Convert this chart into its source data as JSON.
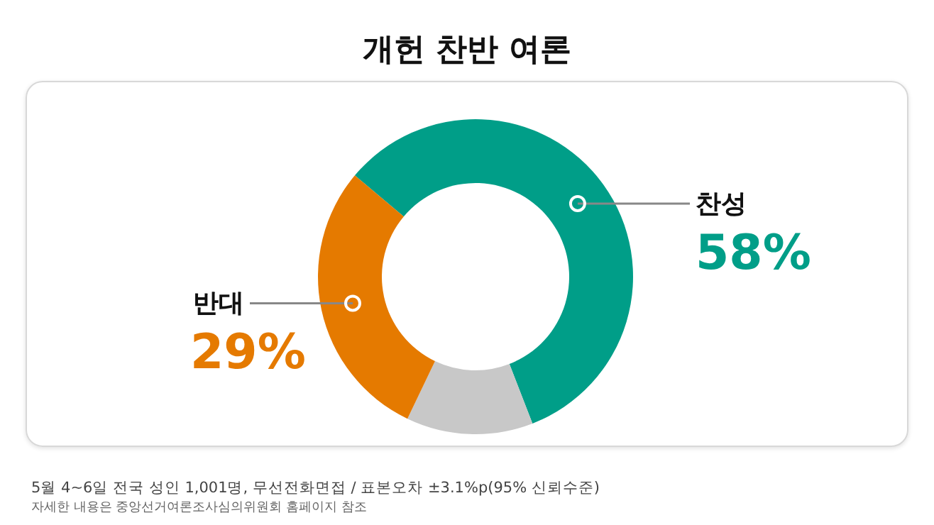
{
  "chart_data": {
    "type": "donut",
    "title": "개헌 찬반 여론",
    "categories": [
      "찬성",
      null,
      "반대"
    ],
    "values": [
      58,
      13,
      29
    ],
    "colors": [
      "#009e88",
      "#c8c8c8",
      "#e57a00"
    ],
    "value_labels": [
      "58%",
      null,
      "29%"
    ],
    "legend": false,
    "annotations": [
      "5월 4~6일 전국 성인 1,001명, 무선전화면접 / 표본오차 ±3.1%p(95% 신뢰수준)",
      "자세한 내용은 중앙선거여론조사심의위원회 홈페이지 참조"
    ]
  }
}
